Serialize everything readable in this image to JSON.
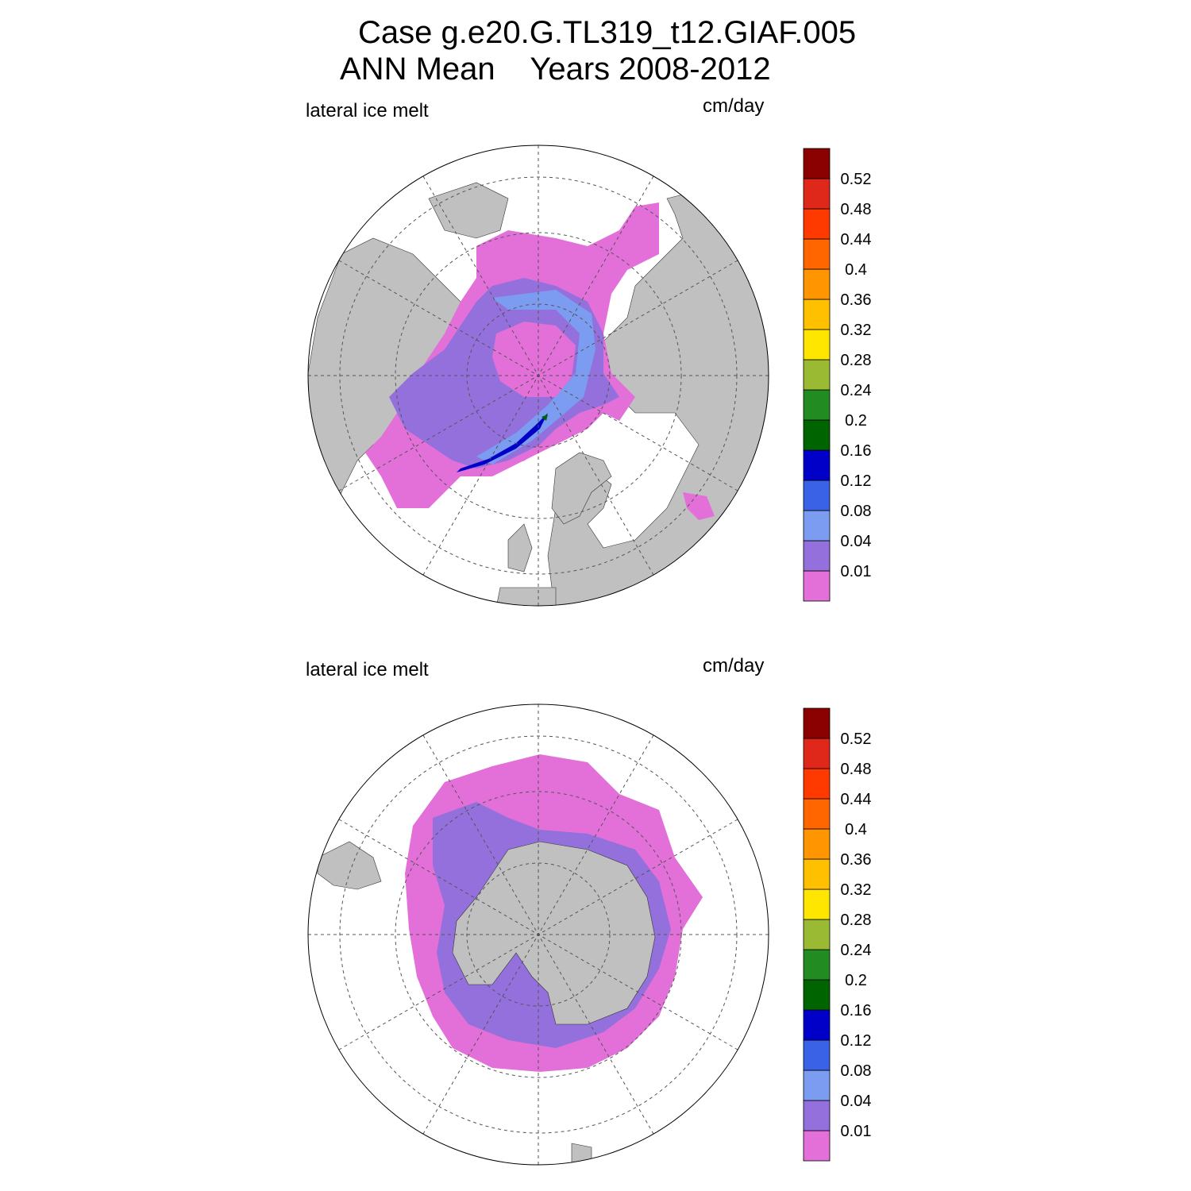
{
  "title": {
    "line1": "Case g.e20.G.TL319_t12.GIAF.005",
    "line2": "ANN Mean    Years 2008-2012"
  },
  "colors": {
    "land": "#c0c0c0",
    "ocean": "#ffffff",
    "grid": "#555555",
    "levels": [
      "#e36fd8",
      "#9370db",
      "#7b9cf0",
      "#3a62e6",
      "#0000c8",
      "#006400",
      "#228b22",
      "#9aba33",
      "#ffe600",
      "#ffc000",
      "#ff9500",
      "#ff6600",
      "#ff3a00",
      "#e0281a",
      "#8b0000"
    ]
  },
  "colorbar": {
    "labels": [
      "0.01",
      "0.04",
      "0.08",
      "0.12",
      "0.16",
      "0.2",
      "0.24",
      "0.28",
      "0.32",
      "0.36",
      "0.4",
      "0.44",
      "0.48",
      "0.52"
    ]
  },
  "panels": [
    {
      "id": "north",
      "variable": "lateral ice melt",
      "units": "cm/day",
      "hemisphere": "Arctic"
    },
    {
      "id": "south",
      "variable": "lateral ice melt",
      "units": "cm/day",
      "hemisphere": "Antarctic"
    }
  ]
}
